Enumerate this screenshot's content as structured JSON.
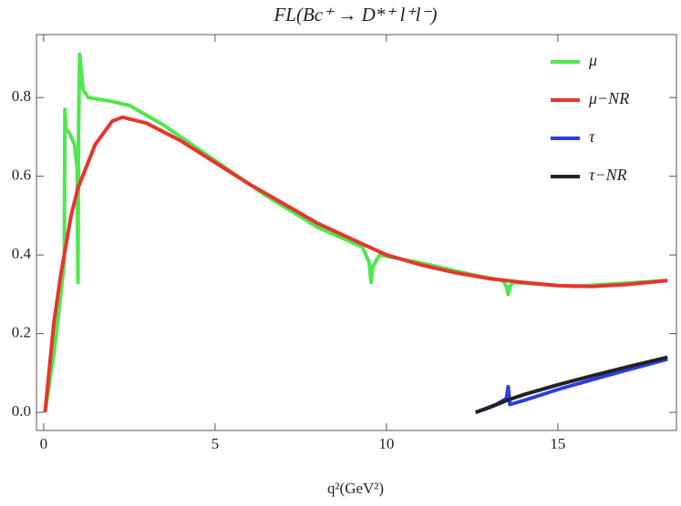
{
  "chart_data": {
    "type": "line",
    "title": "FL(Bc⁺ → D*⁺ l⁺l⁻)",
    "x_label": "q²(GeV²)",
    "xlim": [
      -0.21,
      18.46
    ],
    "ylim": [
      -0.046,
      0.96
    ],
    "xticks": [
      0,
      5,
      10,
      15
    ],
    "yticks": [
      {
        "value": 0,
        "label": "0.0"
      },
      0.2,
      0.4,
      0.6,
      0.8
    ],
    "legend": "top-right",
    "series": [
      {
        "name": "μ",
        "color": "#4de84d",
        "x": [
          0.04,
          0.3,
          0.5,
          0.6,
          0.62,
          0.65,
          0.75,
          0.9,
          0.98,
          1.0,
          1.02,
          1.05,
          1.15,
          1.3,
          2,
          2.5,
          3.5,
          5,
          6.5,
          8,
          9.3,
          9.5,
          9.55,
          9.6,
          9.8,
          11,
          12.5,
          13.4,
          13.5,
          13.55,
          13.6,
          13.7,
          15.5,
          18.2
        ],
        "values": [
          0,
          0.15,
          0.3,
          0.38,
          0.77,
          0.72,
          0.71,
          0.68,
          0.62,
          0.33,
          0.72,
          0.91,
          0.82,
          0.8,
          0.79,
          0.78,
          0.73,
          0.64,
          0.55,
          0.47,
          0.42,
          0.38,
          0.33,
          0.37,
          0.4,
          0.38,
          0.35,
          0.335,
          0.32,
          0.3,
          0.32,
          0.33,
          0.32,
          0.335
        ]
      },
      {
        "name": "μ−NR",
        "color": "#e8342f",
        "x": [
          0.04,
          0.3,
          0.5,
          0.8,
          1.0,
          1.5,
          2,
          2.3,
          3,
          4,
          5,
          6,
          7,
          8,
          9,
          10,
          11,
          12,
          13,
          14,
          15,
          16,
          17,
          18.2
        ],
        "values": [
          0,
          0.23,
          0.35,
          0.5,
          0.57,
          0.68,
          0.74,
          0.75,
          0.735,
          0.69,
          0.635,
          0.58,
          0.53,
          0.48,
          0.44,
          0.4,
          0.375,
          0.355,
          0.34,
          0.33,
          0.322,
          0.32,
          0.325,
          0.335
        ]
      },
      {
        "name": "τ",
        "color": "#2a3fe0",
        "x": [
          12.6,
          13.2,
          13.5,
          13.55,
          13.6,
          14,
          15,
          16,
          17,
          18.2
        ],
        "values": [
          0,
          0.02,
          0.035,
          0.065,
          0.02,
          0.03,
          0.058,
          0.083,
          0.107,
          0.135
        ]
      },
      {
        "name": "τ−NR",
        "color": "#222222",
        "x": [
          12.6,
          13,
          13.5,
          14,
          15,
          16,
          17,
          18.2
        ],
        "values": [
          0,
          0.012,
          0.03,
          0.045,
          0.07,
          0.093,
          0.115,
          0.14
        ]
      }
    ]
  }
}
